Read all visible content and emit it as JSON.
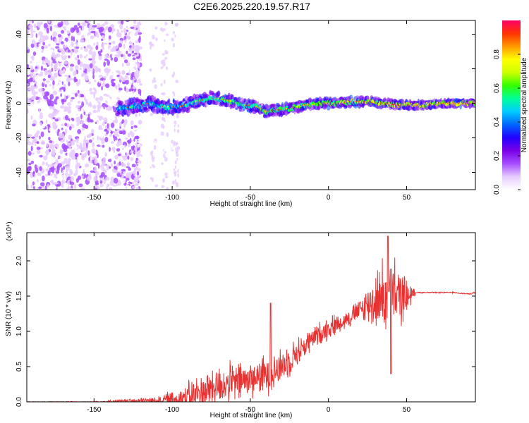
{
  "title": "C2E6.2025.220.19.57.R17",
  "chart_data": [
    {
      "type": "heatmap",
      "xlabel": "Height of straight line (km)",
      "ylabel": "Frequency (Hz)",
      "xlim": [
        -193,
        94
      ],
      "ylim": [
        -50,
        48
      ],
      "xticks": [
        -150,
        -100,
        -50,
        0,
        50
      ],
      "yticks": [
        -40,
        -20,
        0,
        20,
        40
      ],
      "colorbar": {
        "label": "Normalized spectral amplitude",
        "range": [
          0.0,
          1.0
        ],
        "ticks": [
          "0.0",
          "0.2",
          "0.4",
          "0.6",
          "0.8"
        ],
        "colormap": [
          "#ffffff",
          "#e6ccff",
          "#a64dff",
          "#7a00e6",
          "#2200ff",
          "#0066ff",
          "#00ccff",
          "#00ff99",
          "#33ff00",
          "#ccff00",
          "#ffff00",
          "#ff9900",
          "#ff3300",
          "#ff0066"
        ]
      },
      "ridge": {
        "x": [
          -135,
          -125,
          -115,
          -105,
          -95,
          -85,
          -75,
          -65,
          -55,
          -45,
          -40,
          -35,
          -25,
          -15,
          -5,
          5,
          15,
          25,
          35,
          45,
          55,
          65,
          75,
          85,
          94
        ],
        "y": [
          -3,
          -2,
          0,
          -2,
          -2,
          1,
          3,
          2,
          -1,
          -2,
          -5,
          -4,
          -3,
          -1,
          0,
          0,
          1,
          1,
          0,
          -1,
          -1,
          -1,
          0,
          0,
          0
        ]
      },
      "noise_region": {
        "x_range": [
          -193,
          -120
        ],
        "y_range": [
          -50,
          48
        ]
      }
    },
    {
      "type": "line",
      "xlabel": "Height of straight line (km)",
      "ylabel": "SNR (10 * v/v)",
      "y_multiplier": "(x10⁴)",
      "xlim": [
        -193,
        94
      ],
      "ylim": [
        0,
        2.4
      ],
      "xticks": [
        -150,
        -100,
        -50,
        0,
        50
      ],
      "yticks": [
        "0.0",
        "0.5",
        "1.0",
        "1.5",
        "2.0"
      ],
      "color": "#e83232",
      "envelope": {
        "x": [
          -193,
          -150,
          -110,
          -95,
          -85,
          -75,
          -65,
          -55,
          -45,
          -38,
          -30,
          -20,
          -10,
          0,
          10,
          20,
          28,
          34,
          40,
          46,
          50,
          56,
          70,
          80,
          90,
          94
        ],
        "base": [
          0.0,
          0.0,
          0.02,
          0.05,
          0.1,
          0.2,
          0.25,
          0.3,
          0.35,
          0.4,
          0.5,
          0.7,
          0.9,
          1.05,
          1.15,
          1.3,
          1.4,
          1.5,
          1.5,
          1.5,
          1.5,
          1.55,
          1.55,
          1.55,
          1.53,
          1.55
        ],
        "amp": [
          0.005,
          0.01,
          0.06,
          0.2,
          0.3,
          0.35,
          0.35,
          0.35,
          0.3,
          0.35,
          0.3,
          0.25,
          0.2,
          0.2,
          0.15,
          0.2,
          0.4,
          0.6,
          0.7,
          0.5,
          0.3,
          0.01,
          0.01,
          0.01,
          0.01,
          0.01
        ],
        "notable_peaks": [
          {
            "x": -37,
            "y": 1.4
          },
          {
            "x": 38,
            "y": 2.35
          },
          {
            "x": 40,
            "y": 0.4
          }
        ]
      }
    }
  ]
}
